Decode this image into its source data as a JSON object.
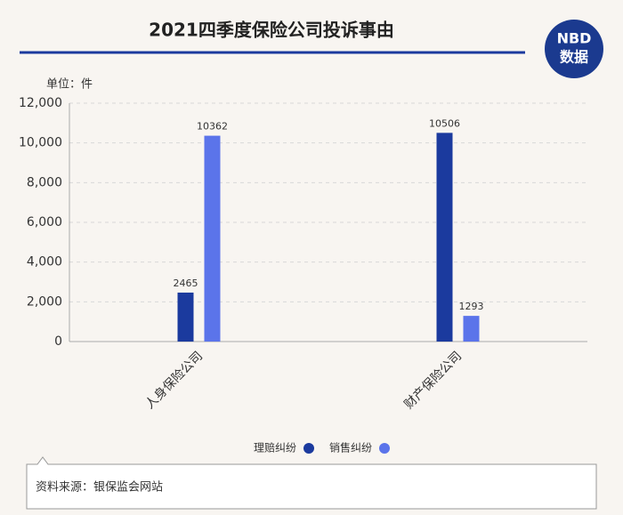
{
  "chart_data": {
    "type": "bar",
    "title": "2021四季度保险公司投诉事由",
    "logo": [
      "NBD",
      "数据"
    ],
    "unit_label": "单位：件",
    "categories": [
      "人身保险公司",
      "财产保险公司"
    ],
    "series": [
      {
        "name": "理赔纠纷",
        "color": "#1b3a9e",
        "values": [
          2465,
          10506
        ]
      },
      {
        "name": "销售纠纷",
        "color": "#5b74ea",
        "values": [
          10362,
          1293
        ]
      }
    ],
    "ylim": [
      0,
      12000
    ],
    "yticks": [
      0,
      {
        "value": 2000,
        "label": "2,000"
      },
      {
        "value": 4000,
        "label": "4,000"
      },
      {
        "value": 6000,
        "label": "6,000"
      },
      {
        "value": 8000,
        "label": "8,000"
      },
      {
        "value": 10000,
        "label": "10,000"
      },
      {
        "value": 12000,
        "label": "12,000"
      }
    ],
    "grid": true,
    "source": "资料来源：银保监会网站"
  }
}
